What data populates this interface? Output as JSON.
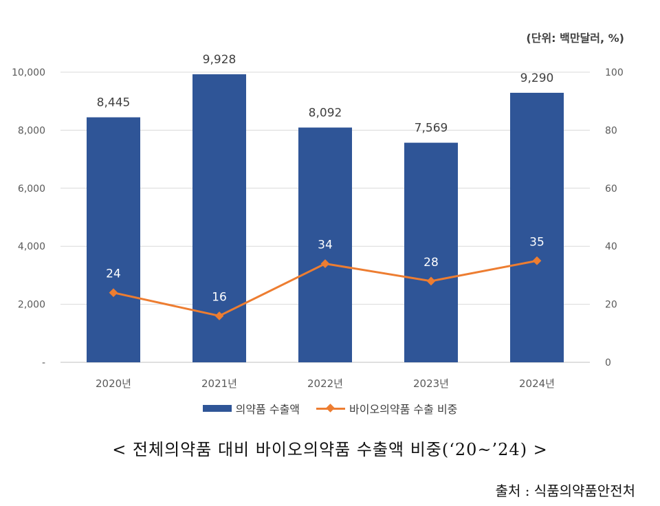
{
  "unit_label": "(단위: 백만달러, %)",
  "caption": "< 전체의약품 대비 바이오의약품 수출액 비중(‘20~’24) >",
  "source": "출처 : 식품의약품안전처",
  "colors": {
    "bar": "#2F5597",
    "line": "#ED7D31",
    "grid": "#D9D9D9",
    "axis_text": "#595959"
  },
  "chart_data": {
    "type": "bar",
    "categories": [
      "2020년",
      "2021년",
      "2022년",
      "2023년",
      "2024년"
    ],
    "series": [
      {
        "name": "의약품 수출액",
        "type": "bar",
        "axis": "left",
        "values": [
          8445,
          9928,
          8092,
          7569,
          9290
        ],
        "labels": [
          "8,445",
          "9,928",
          "8,092",
          "7,569",
          "9,290"
        ]
      },
      {
        "name": "바이오의약품 수출 비중",
        "type": "line",
        "axis": "right",
        "values": [
          24,
          16,
          34,
          28,
          35
        ],
        "labels": [
          "24",
          "16",
          "34",
          "28",
          "35"
        ]
      }
    ],
    "y_left": {
      "ylim": [
        0,
        10000
      ],
      "ticks": [
        0,
        2000,
        4000,
        6000,
        8000,
        10000
      ],
      "tick_labels": [
        "-",
        "2,000",
        "4,000",
        "6,000",
        "8,000",
        "10,000"
      ]
    },
    "y_right": {
      "ylim": [
        0,
        100
      ],
      "ticks": [
        0,
        20,
        40,
        60,
        80,
        100
      ],
      "tick_labels": [
        "0",
        "20",
        "40",
        "60",
        "80",
        "100"
      ]
    },
    "grid": true,
    "legend_position": "bottom"
  }
}
